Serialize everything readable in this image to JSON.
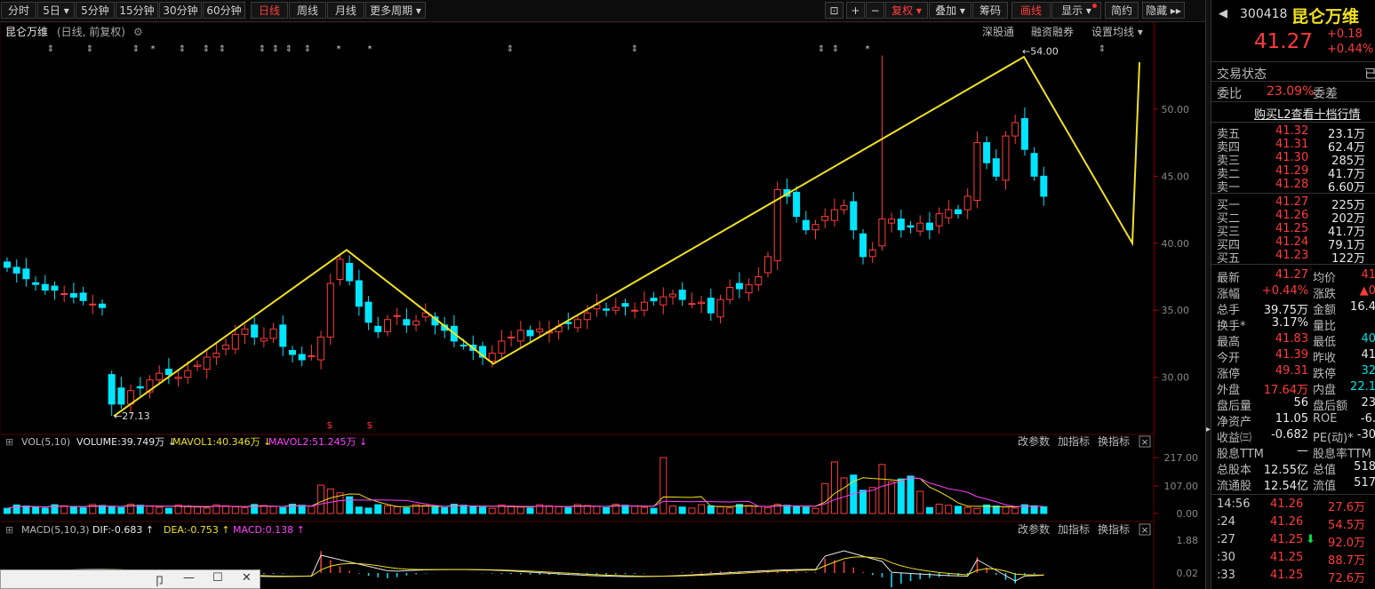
{
  "toolbar": {
    "periods": [
      "分时",
      "5日",
      "5分钟",
      "15分钟",
      "30分钟",
      "60分钟",
      "日线",
      "周线",
      "月线",
      "更多周期"
    ],
    "active_period": "日线",
    "right_tools": [
      "复权",
      "叠加",
      "筹码",
      "画线",
      "显示",
      "简约",
      "隐藏"
    ],
    "icon_plus": "+",
    "icon_minus": "−"
  },
  "chart_header": {
    "name": "昆仑万维",
    "mode": "(日线, 前复权)",
    "links": [
      "深股通",
      "融资融券",
      "设置均线"
    ]
  },
  "chart_data": [
    {
      "type": "candlestick",
      "ylim": [
        26,
        54.5
      ],
      "yticks": [
        30,
        35,
        40,
        45,
        50
      ],
      "ytick_labels": [
        "30.00",
        "35.00",
        "40.00",
        "45.00",
        "50.00"
      ],
      "annotations": [
        {
          "text": "←27.13",
          "y": 27.13
        },
        {
          "text": "←54.00",
          "y": 54.0
        }
      ],
      "drawn_line_points": [
        27.1,
        39.5,
        31.0,
        53.9,
        40.0,
        53.5
      ],
      "up_color": "#ff3b3b",
      "down_color": "#00e5ff",
      "line_color": "#f0e020"
    },
    {
      "type": "bar",
      "name": "VOL(5,10)",
      "legend": [
        "VOLUME:39.749万",
        "MAVOL1:40.346万",
        "MAVOL2:51.245万"
      ],
      "yticks": [
        0,
        107,
        217
      ],
      "ytick_labels": [
        "0.00",
        "107.00",
        "217.00"
      ]
    },
    {
      "type": "bar",
      "name": "MACD(5,10,3)",
      "legend": [
        "DIF:-0.683",
        "DEA:-0.753",
        "MACD:0.138"
      ],
      "ytick_labels": [
        "1.88",
        "0.02"
      ]
    }
  ],
  "subpanel_tools": [
    "改参数",
    "加指标",
    "换指标"
  ],
  "close_symbol": "×",
  "quote": {
    "code": "300418",
    "name": "昆仑万维",
    "price": "41.27",
    "change": "+0.18",
    "change_pct": "+0.44%",
    "trade_state_label": "交易状态",
    "trade_state_value": "已",
    "weibi_label": "委比",
    "weibi_value": "23.09%",
    "weicha_label": "委差",
    "l2_link": "购买L2查看十档行情",
    "asks": [
      {
        "label": "卖五",
        "price": "41.32",
        "vol": "23.1万"
      },
      {
        "label": "卖四",
        "price": "41.31",
        "vol": "62.4万"
      },
      {
        "label": "卖三",
        "price": "41.30",
        "vol": "285万"
      },
      {
        "label": "卖二",
        "price": "41.29",
        "vol": "41.7万"
      },
      {
        "label": "卖一",
        "price": "41.28",
        "vol": "6.60万"
      }
    ],
    "bids": [
      {
        "label": "买一",
        "price": "41.27",
        "vol": "225万"
      },
      {
        "label": "买二",
        "price": "41.26",
        "vol": "202万"
      },
      {
        "label": "买三",
        "price": "41.25",
        "vol": "41.7万"
      },
      {
        "label": "买四",
        "price": "41.24",
        "vol": "79.1万"
      },
      {
        "label": "买五",
        "price": "41.23",
        "vol": "122万"
      }
    ],
    "stats": [
      {
        "l1": "最新",
        "v1": "41.27",
        "c1": "red",
        "l2": "均价",
        "v2": "41",
        "c2": "red"
      },
      {
        "l1": "涨幅",
        "v1": "+0.44%",
        "c1": "red",
        "l2": "涨跌",
        "v2": "▲0",
        "c2": "red"
      },
      {
        "l1": "总手",
        "v1": "39.75万",
        "c1": "wht",
        "l2": "金额",
        "v2": "16.4",
        "c2": "wht"
      },
      {
        "l1": "换手*",
        "v1": "3.17%",
        "c1": "wht",
        "l2": "量比",
        "v2": "",
        "c2": "wht"
      },
      {
        "l1": "最高",
        "v1": "41.83",
        "c1": "red",
        "l2": "最低",
        "v2": "40",
        "c2": "grn"
      },
      {
        "l1": "今开",
        "v1": "41.39",
        "c1": "red",
        "l2": "昨收",
        "v2": "41",
        "c2": "wht"
      },
      {
        "l1": "涨停",
        "v1": "49.31",
        "c1": "red",
        "l2": "跌停",
        "v2": "32",
        "c2": "grn"
      },
      {
        "l1": "外盘",
        "v1": "17.64万",
        "c1": "red",
        "l2": "内盘",
        "v2": "22.1",
        "c2": "grn"
      },
      {
        "l1": "盘后量",
        "v1": "56",
        "c1": "wht",
        "l2": "盘后额",
        "v2": "23",
        "c2": "wht"
      },
      {
        "l1": "净资产",
        "v1": "11.05",
        "c1": "wht",
        "l2": "ROE",
        "v2": "-6.",
        "c2": "wht"
      },
      {
        "l1": "收益㈢",
        "v1": "-0.682",
        "c1": "wht",
        "l2": "PE(动)*",
        "v2": "-30",
        "c2": "wht"
      },
      {
        "l1": "股息TTM",
        "v1": "—",
        "c1": "wht",
        "l2": "股息率TTM",
        "v2": "",
        "c2": "wht"
      },
      {
        "l1": "总股本",
        "v1": "12.55亿",
        "c1": "wht",
        "l2": "总值",
        "v2": "518",
        "c2": "wht"
      },
      {
        "l1": "流通股",
        "v1": "12.54亿",
        "c1": "wht",
        "l2": "流值",
        "v2": "517",
        "c2": "wht"
      }
    ],
    "ticks": [
      {
        "time": "14:56",
        "price": "41.26",
        "vol": "27.6万",
        "arrow": ""
      },
      {
        "time": ":24",
        "price": "41.26",
        "vol": "54.5万",
        "arrow": ""
      },
      {
        "time": ":27",
        "price": "41.25",
        "vol": "92.0万",
        "arrow": "⬇"
      },
      {
        "time": ":30",
        "price": "41.25",
        "vol": "88.7万",
        "arrow": ""
      },
      {
        "time": ":33",
        "price": "41.25",
        "vol": "72.6万",
        "arrow": ""
      }
    ]
  },
  "mini_window": {
    "pin": "卩",
    "min": "—",
    "max": "☐",
    "close": "✕"
  }
}
